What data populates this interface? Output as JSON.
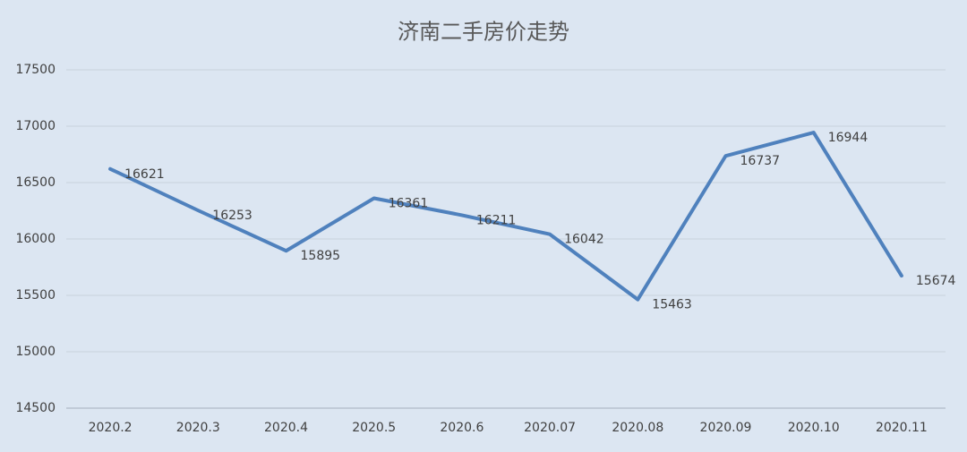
{
  "chart_data": {
    "type": "line",
    "title": "济南二手房价走势",
    "categories": [
      "2020.2",
      "2020.3",
      "2020.4",
      "2020.5",
      "2020.6",
      "2020.07",
      "2020.08",
      "2020.09",
      "2020.10",
      "2020.11"
    ],
    "values": [
      16621,
      16253,
      15895,
      16361,
      16211,
      16042,
      15463,
      16737,
      16944,
      15674
    ],
    "color": "#4f81bd",
    "ylim": [
      14500,
      17500
    ],
    "yticks": [
      14500,
      15000,
      15500,
      16000,
      16500,
      17000,
      17500
    ],
    "grid": true
  }
}
